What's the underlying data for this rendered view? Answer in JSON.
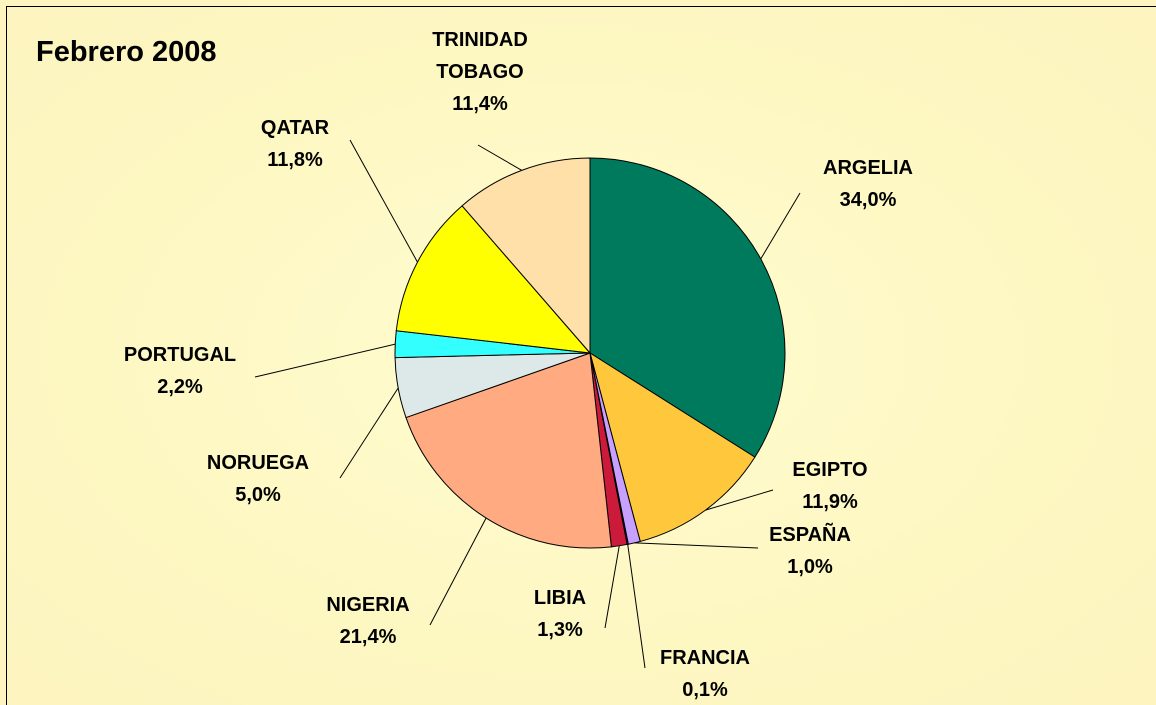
{
  "chart_data": {
    "type": "pie",
    "title": "Febrero 2008",
    "categories": [
      "ARGELIA",
      "EGIPTO",
      "ESPAÑA",
      "FRANCIA",
      "LIBIA",
      "NIGERIA",
      "NORUEGA",
      "PORTUGAL",
      "QATAR",
      "TRINIDAD TOBAGO"
    ],
    "values": [
      34.0,
      11.9,
      1.0,
      0.1,
      1.3,
      21.4,
      5.0,
      2.2,
      11.8,
      11.4
    ],
    "value_labels": [
      "34,0%",
      "11,9%",
      "1,0%",
      "0,1%",
      "1,3%",
      "21,4%",
      "5,0%",
      "2,2%",
      "11,8%",
      "11,4%"
    ],
    "colors": [
      "#007a5c",
      "#ffc83c",
      "#c8a0ff",
      "#3333cc",
      "#cc1a3a",
      "#ffaa80",
      "#dde8e8",
      "#33ffff",
      "#ffff00",
      "#ffe0a8"
    ]
  }
}
